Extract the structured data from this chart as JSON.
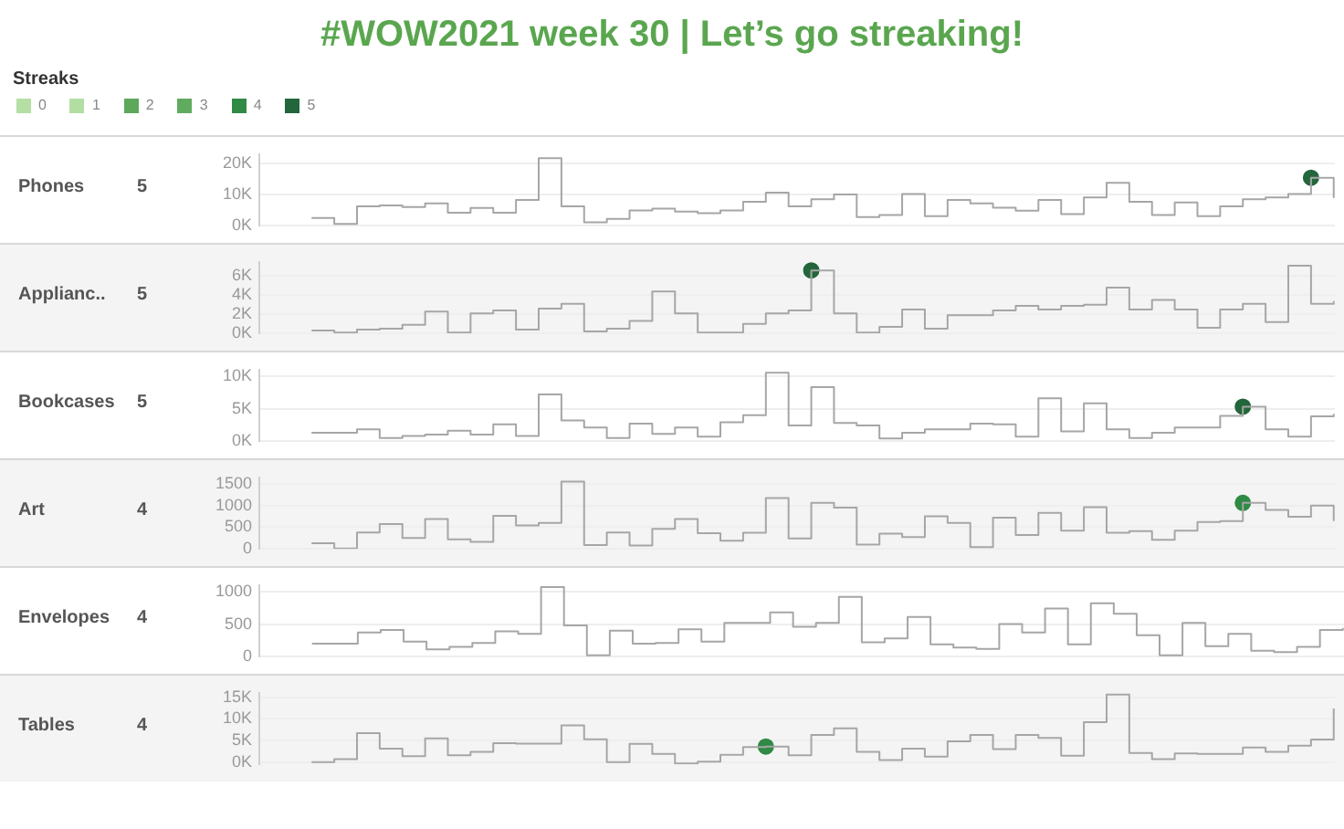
{
  "chart_data": [
    {
      "type": "step",
      "title": "#WOW2021 week 30 | Let’s go streaking!",
      "legend_title": "Streaks",
      "legend": "top left",
      "ylabel": "Phones",
      "subtitle": "5",
      "categories": [
        null,
        null,
        null,
        null,
        null,
        null,
        null,
        null,
        null,
        null,
        null,
        null,
        null,
        null,
        null,
        null,
        null,
        null,
        null,
        null,
        null,
        null,
        null,
        null,
        null,
        null,
        null,
        null,
        null,
        null,
        null,
        null,
        null,
        null,
        null,
        null,
        null,
        null,
        null,
        null,
        null,
        null,
        null,
        null,
        null,
        null
      ],
      "series": [
        {
          "color": "#a6a6a6",
          "values": [
            2500,
            600,
            6200,
            6500,
            6000,
            7200,
            4200,
            5700,
            4200,
            8300,
            21700,
            6200,
            1100,
            2200,
            4900,
            5500,
            4500,
            4000,
            4900,
            7700,
            10600,
            6200,
            8500,
            10000,
            2800,
            3400,
            10200,
            3100,
            8300,
            7200,
            5800,
            4800,
            8300,
            3700,
            9100,
            13800,
            7700,
            3400,
            7500,
            3100,
            6200,
            8500,
            9100,
            10200,
            15400,
            8900
          ]
        },
        {
          "type": "scatter",
          "name": "0",
          "color": "#b5dfa5",
          "values": [
            null,
            null,
            null,
            null,
            null,
            null,
            null,
            null,
            null,
            null,
            null,
            null,
            null,
            null,
            null,
            null,
            null,
            null,
            null,
            null,
            null,
            null,
            null,
            null,
            null,
            null,
            null,
            null,
            null,
            null,
            null,
            null,
            null,
            null,
            null,
            null,
            null,
            null,
            null,
            null,
            null,
            null,
            null,
            null,
            null,
            null
          ]
        },
        {
          "type": "scatter",
          "name": "1",
          "color": "#b3dea3",
          "values": [
            null,
            null,
            null,
            null,
            null,
            null,
            null,
            null,
            null,
            null,
            null,
            null,
            null,
            null,
            null,
            null,
            null,
            null,
            null,
            null,
            null,
            null,
            null,
            null,
            null,
            null,
            null,
            null,
            null,
            null,
            null,
            null,
            null,
            null,
            null,
            null,
            null,
            null,
            null,
            null,
            null,
            null,
            null,
            null,
            null,
            null
          ]
        },
        {
          "type": "scatter",
          "name": "2",
          "color": "#5ea85c",
          "values": [
            null,
            null,
            null,
            null,
            null,
            null,
            null,
            null,
            null,
            null,
            null,
            null,
            null,
            null,
            null,
            null,
            null,
            null,
            null,
            null,
            null,
            null,
            null,
            null,
            null,
            null,
            null,
            null,
            null,
            null,
            null,
            null,
            null,
            null,
            null,
            null,
            null,
            null,
            null,
            null,
            null,
            null,
            null,
            null,
            null,
            null
          ]
        },
        {
          "type": "scatter",
          "name": "3",
          "color": "#61ab60",
          "values": [
            null,
            null,
            null,
            null,
            null,
            null,
            null,
            null,
            null,
            null,
            null,
            null,
            null,
            null,
            null,
            null,
            null,
            null,
            null,
            null,
            null,
            null,
            null,
            null,
            null,
            null,
            null,
            null,
            null,
            null,
            null,
            null,
            null,
            null,
            null,
            null,
            null,
            null,
            null,
            null,
            null,
            null,
            null,
            null,
            null,
            null
          ]
        },
        {
          "type": "scatter",
          "name": "4",
          "color": "#2f8a45",
          "values": [
            null,
            null,
            null,
            null,
            null,
            null,
            null,
            null,
            null,
            null,
            null,
            null,
            null,
            null,
            null,
            null,
            null,
            null,
            null,
            null,
            null,
            null,
            null,
            null,
            null,
            null,
            null,
            null,
            null,
            null,
            null,
            null,
            null,
            null,
            null,
            null,
            null,
            null,
            null,
            null,
            null,
            null,
            null,
            null,
            null,
            null
          ]
        },
        {
          "type": "scatter",
          "name": "5",
          "color": "#24663c",
          "values": [
            null,
            null,
            null,
            null,
            null,
            null,
            null,
            null,
            null,
            null,
            null,
            null,
            null,
            null,
            null,
            null,
            null,
            null,
            null,
            null,
            null,
            null,
            null,
            null,
            null,
            null,
            null,
            null,
            null,
            null,
            null,
            null,
            null,
            null,
            null,
            null,
            null,
            null,
            null,
            null,
            null,
            null,
            null,
            null,
            15400,
            null
          ]
        }
      ],
      "ylim": [
        0,
        23000
      ],
      "yticks": [
        {
          "value": 0,
          "label": "0K"
        },
        {
          "value": 10000,
          "label": "10K"
        },
        {
          "value": 20000,
          "label": "20K"
        }
      ],
      "grid": "y",
      "tick_labels": "y"
    },
    {
      "type": "step",
      "ylabel": "Applianc..",
      "subtitle": "5",
      "categories": [
        null,
        null,
        null,
        null,
        null,
        null,
        null,
        null,
        null,
        null,
        null,
        null,
        null,
        null,
        null,
        null,
        null,
        null,
        null,
        null,
        null,
        null,
        null,
        null,
        null,
        null,
        null,
        null,
        null,
        null,
        null,
        null,
        null,
        null,
        null,
        null,
        null,
        null,
        null,
        null,
        null,
        null,
        null,
        null,
        null,
        null
      ],
      "series": [
        {
          "color": "#a6a6a6",
          "values": [
            300,
            100,
            400,
            500,
            900,
            2300,
            100,
            2100,
            2400,
            400,
            2600,
            3100,
            200,
            500,
            1300,
            4400,
            2100,
            100,
            100,
            1000,
            2100,
            2400,
            6600,
            2100,
            100,
            700,
            2500,
            500,
            1900,
            1900,
            2400,
            2900,
            2500,
            2900,
            3000,
            4800,
            2500,
            3500,
            2500,
            600,
            2500,
            3100,
            1200,
            7100,
            3100,
            3400
          ]
        },
        {
          "type": "scatter",
          "color": "#24663c",
          "values": [
            null,
            null,
            null,
            null,
            null,
            null,
            null,
            null,
            null,
            null,
            null,
            null,
            null,
            null,
            null,
            null,
            null,
            null,
            null,
            null,
            null,
            null,
            6600,
            null,
            null,
            null,
            null,
            null,
            null,
            null,
            null,
            null,
            null,
            null,
            null,
            null,
            null,
            null,
            null,
            null,
            null,
            null,
            null,
            null,
            null,
            null
          ]
        }
      ],
      "ylim": [
        0,
        7500
      ],
      "yticks": [
        {
          "value": 0,
          "label": "0K"
        },
        {
          "value": 2000,
          "label": "2K"
        },
        {
          "value": 4000,
          "label": "4K"
        },
        {
          "value": 6000,
          "label": "6K"
        }
      ],
      "grid": "y",
      "tick_labels": "y"
    },
    {
      "type": "step",
      "ylabel": "Bookcases",
      "subtitle": "5",
      "categories": [
        null,
        null,
        null,
        null,
        null,
        null,
        null,
        null,
        null,
        null,
        null,
        null,
        null,
        null,
        null,
        null,
        null,
        null,
        null,
        null,
        null,
        null,
        null,
        null,
        null,
        null,
        null,
        null,
        null,
        null,
        null,
        null,
        null,
        null,
        null,
        null,
        null,
        null,
        null,
        null,
        null,
        null,
        null,
        null,
        null,
        null
      ],
      "series": [
        {
          "color": "#a6a6a6",
          "values": [
            1300,
            1300,
            1800,
            500,
            800,
            1000,
            1600,
            1000,
            2600,
            800,
            7200,
            3200,
            2100,
            500,
            2700,
            1100,
            2100,
            700,
            2900,
            4000,
            10500,
            2400,
            8300,
            2800,
            2400,
            400,
            1300,
            1800,
            1800,
            2700,
            2600,
            700,
            6600,
            1500,
            5800,
            1800,
            500,
            1300,
            2100,
            2100,
            3900,
            5300,
            1800,
            700,
            3800,
            4200
          ]
        },
        {
          "type": "scatter",
          "color": "#24663c",
          "values": [
            null,
            null,
            null,
            null,
            null,
            null,
            null,
            null,
            null,
            null,
            null,
            null,
            null,
            null,
            null,
            null,
            null,
            null,
            null,
            null,
            null,
            null,
            null,
            null,
            null,
            null,
            null,
            null,
            null,
            null,
            null,
            null,
            null,
            null,
            null,
            null,
            null,
            null,
            null,
            null,
            null,
            5300,
            null,
            null,
            null,
            null
          ]
        }
      ],
      "ylim": [
        0,
        11000
      ],
      "yticks": [
        {
          "value": 0,
          "label": "0K"
        },
        {
          "value": 5000,
          "label": "5K"
        },
        {
          "value": 10000,
          "label": "10K"
        }
      ],
      "grid": "y",
      "tick_labels": "y"
    },
    {
      "type": "step",
      "ylabel": "Art",
      "subtitle": "4",
      "categories": [
        null,
        null,
        null,
        null,
        null,
        null,
        null,
        null,
        null,
        null,
        null,
        null,
        null,
        null,
        null,
        null,
        null,
        null,
        null,
        null,
        null,
        null,
        null,
        null,
        null,
        null,
        null,
        null,
        null,
        null,
        null,
        null,
        null,
        null,
        null,
        null,
        null,
        null,
        null,
        null,
        null,
        null,
        null,
        null,
        null,
        null
      ],
      "series": [
        {
          "color": "#a6a6a6",
          "values": [
            130,
            10,
            380,
            570,
            250,
            690,
            220,
            160,
            760,
            540,
            600,
            1550,
            90,
            380,
            80,
            460,
            690,
            360,
            190,
            370,
            1170,
            240,
            1060,
            950,
            100,
            350,
            270,
            750,
            600,
            40,
            720,
            320,
            830,
            420,
            960,
            370,
            410,
            210,
            420,
            620,
            640,
            1060,
            900,
            740,
            1000,
            640
          ]
        },
        {
          "type": "scatter",
          "color": "#2f8a45",
          "values": [
            null,
            null,
            null,
            null,
            null,
            null,
            null,
            null,
            null,
            null,
            null,
            null,
            null,
            null,
            null,
            null,
            null,
            null,
            null,
            null,
            null,
            null,
            null,
            null,
            null,
            null,
            null,
            null,
            null,
            null,
            null,
            null,
            null,
            null,
            null,
            null,
            null,
            null,
            null,
            null,
            null,
            1060,
            null,
            null,
            null,
            null
          ]
        }
      ],
      "ylim": [
        0,
        1650
      ],
      "yticks": [
        0,
        500,
        1000,
        1500
      ],
      "grid": "y",
      "tick_labels": "y"
    },
    {
      "type": "step",
      "ylabel": "Envelopes",
      "subtitle": "4",
      "categories": [
        null,
        null,
        null,
        null,
        null,
        null,
        null,
        null,
        null,
        null,
        null,
        null,
        null,
        null,
        null,
        null,
        null,
        null,
        null,
        null,
        null,
        null,
        null,
        null,
        null,
        null,
        null,
        null,
        null,
        null,
        null,
        null,
        null,
        null,
        null,
        null,
        null,
        null,
        null,
        null,
        null,
        null,
        null,
        null,
        null,
        null
      ],
      "series": [
        {
          "color": "#a6a6a6",
          "values": [
            200,
            200,
            370,
            410,
            230,
            110,
            150,
            210,
            390,
            350,
            1070,
            480,
            20,
            400,
            200,
            210,
            420,
            230,
            520,
            520,
            680,
            460,
            520,
            920,
            220,
            280,
            610,
            190,
            140,
            120,
            500,
            370,
            740,
            190,
            820,
            660,
            330,
            20,
            520,
            160,
            350,
            90,
            70,
            150,
            410,
            440
          ]
        }
      ],
      "ylim": [
        0,
        1100
      ],
      "yticks": [
        0,
        500,
        1000
      ],
      "grid": "y",
      "tick_labels": "y"
    },
    {
      "type": "step",
      "ylabel": "Tables",
      "subtitle": "4",
      "categories": [
        null,
        null,
        null,
        null,
        null,
        null,
        null,
        null,
        null,
        null,
        null,
        null,
        null,
        null,
        null,
        null,
        null,
        null,
        null,
        null,
        null,
        null,
        null,
        null,
        null,
        null,
        null,
        null,
        null,
        null,
        null,
        null,
        null,
        null,
        null,
        null,
        null,
        null,
        null,
        null,
        null,
        null,
        null,
        null,
        null,
        null
      ],
      "series": [
        {
          "color": "#a6a6a6",
          "values": [
            0,
            700,
            6700,
            3100,
            1400,
            5500,
            1600,
            2400,
            4400,
            4300,
            4300,
            8500,
            5300,
            0,
            4200,
            1900,
            -300,
            100,
            1700,
            3500,
            3600,
            1600,
            6300,
            7800,
            2400,
            500,
            3100,
            1300,
            4800,
            6300,
            3000,
            6300,
            5600,
            1500,
            9200,
            15600,
            2100,
            700,
            2000,
            1900,
            1900,
            3400,
            2400,
            3800,
            5200,
            12400
          ]
        },
        {
          "type": "scatter",
          "color": "#2f8a45",
          "values": [
            null,
            null,
            null,
            null,
            null,
            null,
            null,
            null,
            null,
            null,
            null,
            null,
            null,
            null,
            null,
            null,
            null,
            null,
            null,
            null,
            3600,
            null,
            null,
            null,
            null,
            null,
            null,
            null,
            null,
            null,
            null,
            null,
            null,
            null,
            null,
            null,
            null,
            null,
            null,
            null,
            null,
            null,
            null,
            null,
            null,
            null
          ]
        }
      ],
      "ylim": [
        -500,
        16000
      ],
      "yticks": [
        {
          "value": 0,
          "label": "0K"
        },
        {
          "value": 5000,
          "label": "5K"
        },
        {
          "value": 10000,
          "label": "10K"
        },
        {
          "value": 15000,
          "label": "15K"
        }
      ],
      "grid": "y",
      "tick_labels": "y"
    }
  ]
}
